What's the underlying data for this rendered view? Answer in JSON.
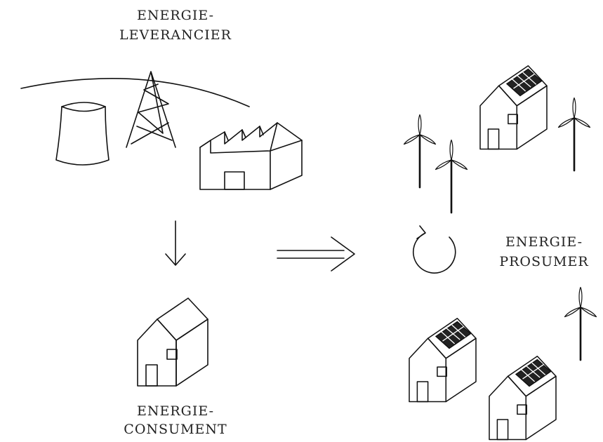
{
  "nodes": [
    {
      "label": [
        "ENERGIE-",
        "LEVERANCIER"
      ]
    },
    {
      "label": [
        "ENERGIE-",
        "CONSUMENT"
      ]
    },
    {
      "label": [
        "ENERGIE-",
        "PROSUMER"
      ]
    }
  ]
}
